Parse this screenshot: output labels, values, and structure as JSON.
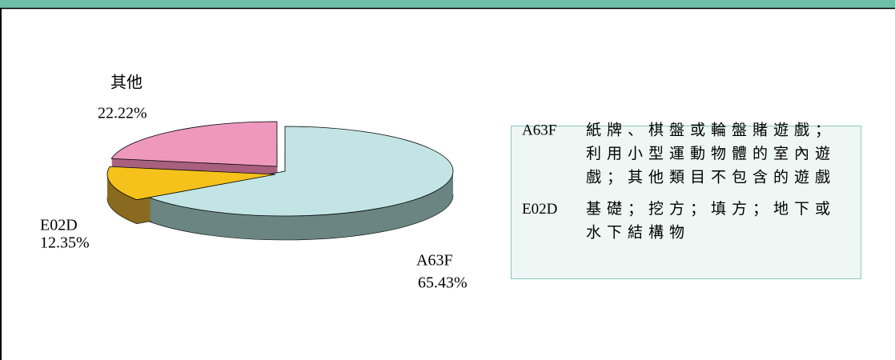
{
  "chart_data": {
    "type": "pie",
    "categories": [
      "A63F",
      "E02D",
      "其他"
    ],
    "values": [
      65.43,
      12.35,
      22.22
    ],
    "value_labels": [
      "65.43%",
      "12.35%",
      "22.22%"
    ],
    "colors": [
      "#c2e4e4",
      "#f5c21b",
      "#ee98bd"
    ],
    "side_colors": [
      "#6a8582",
      "#8a6a1e",
      "#a8607e"
    ],
    "legend": [
      {
        "code": "A63F",
        "lines": [
          "紙牌、棋盤或輪盤賭遊戲；",
          "利用小型運動物體的室內遊",
          "戲；其他類目不包含的遊戲"
        ]
      },
      {
        "code": "E02D",
        "lines": [
          "基礎；挖方；填方；地下或",
          "水下結構物"
        ]
      }
    ]
  }
}
